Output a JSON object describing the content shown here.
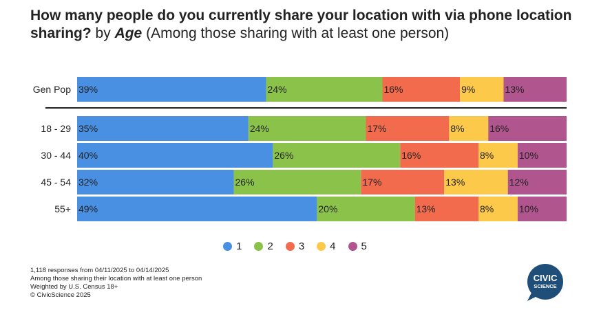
{
  "title": {
    "question": "How many people do you currently share your location with via phone location sharing?",
    "by": "by",
    "dimension": "Age",
    "note": "(Among those sharing with at least one person)"
  },
  "chart_data": {
    "type": "bar",
    "stacked": true,
    "orientation": "horizontal",
    "categories": [
      "Gen Pop",
      "18 - 29",
      "30 - 44",
      "45 - 54",
      "55+"
    ],
    "series": [
      {
        "name": "1",
        "color": "#4a90e2",
        "values": [
          39,
          35,
          40,
          32,
          49
        ]
      },
      {
        "name": "2",
        "color": "#8bc34a",
        "values": [
          24,
          24,
          26,
          26,
          20
        ]
      },
      {
        "name": "3",
        "color": "#f26b4c",
        "values": [
          16,
          17,
          16,
          17,
          13
        ]
      },
      {
        "name": "4",
        "color": "#fcc94a",
        "values": [
          9,
          8,
          8,
          13,
          8
        ]
      },
      {
        "name": "5",
        "color": "#b0558e",
        "values": [
          13,
          16,
          10,
          12,
          10
        ]
      }
    ],
    "value_suffix": "%",
    "legend_position": "bottom"
  },
  "footnotes": [
    "1,118 responses from 04/11/2025 to 04/14/2025",
    "Among those sharing their location with at least one person",
    "Weighted by U.S. Census 18+",
    "© CivicScience 2025"
  ],
  "logo": {
    "line1": "CIVIC",
    "line2": "SCIENCE",
    "color": "#1f4e79"
  }
}
